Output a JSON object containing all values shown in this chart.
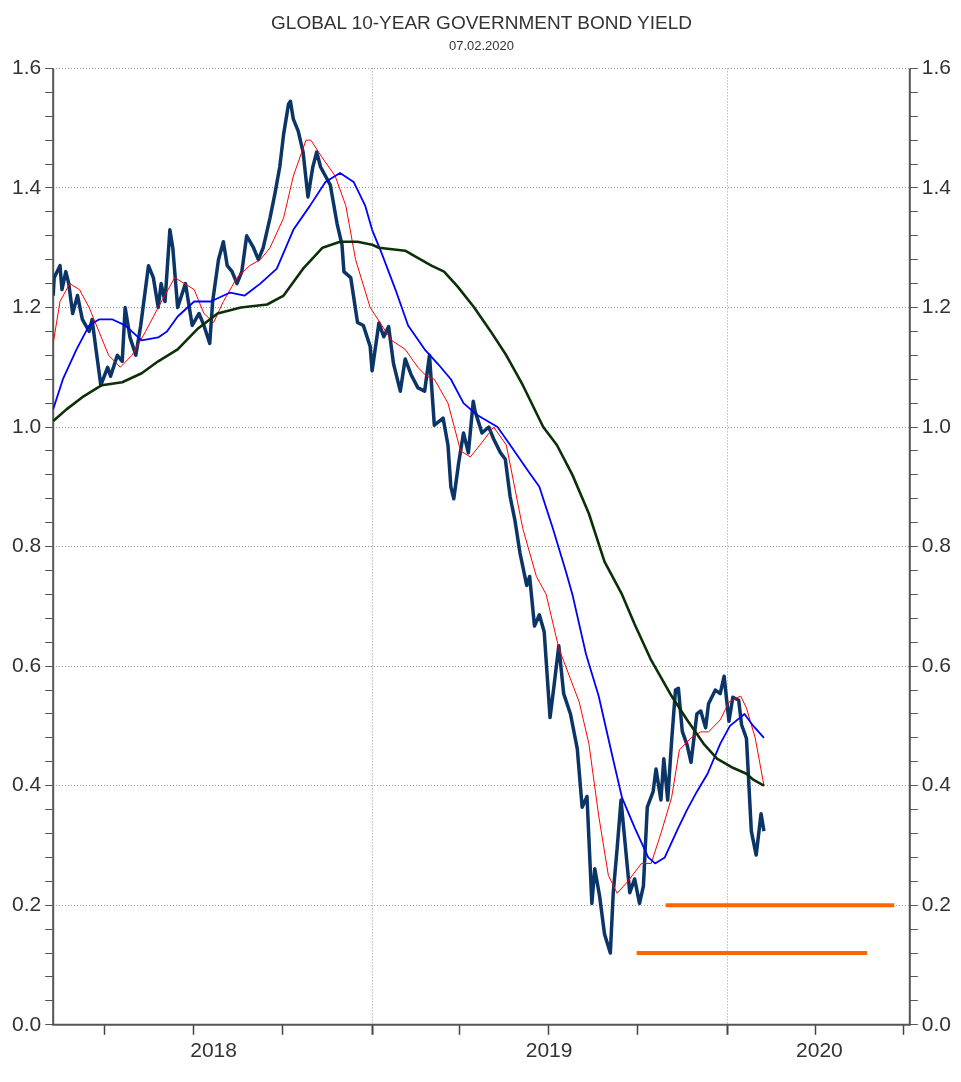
{
  "chart_data": {
    "type": "line",
    "title": "GLOBAL 10-YEAR GOVERNMENT BOND YIELD",
    "subtitle": "07.02.2020",
    "xlim": [
      "2018-02-07",
      "2020-07-07"
    ],
    "xticks": [
      {
        "value": "2018-04-01",
        "label": null
      },
      {
        "value": "2018-07-01",
        "label": null
      },
      {
        "value": "2018-07-22",
        "label": "2018"
      },
      {
        "value": "2018-10-01",
        "label": null
      },
      {
        "value": "2019-01-01",
        "label": null
      },
      {
        "value": "2019-04-01",
        "label": null
      },
      {
        "value": "2019-07-01",
        "label": null
      },
      {
        "value": "2019-07-02",
        "label": "2019"
      },
      {
        "value": "2019-10-01",
        "label": null
      },
      {
        "value": "2020-01-01",
        "label": null
      },
      {
        "value": "2020-04-01",
        "label": null
      },
      {
        "value": "2020-04-05",
        "label": "2020"
      },
      {
        "value": "2020-07-01",
        "label": null
      }
    ],
    "ylim": [
      0,
      1.6
    ],
    "yticks": [
      {
        "value": 0,
        "label": "0.0"
      },
      {
        "value": 0.04,
        "label": null
      },
      {
        "value": 0.08,
        "label": null
      },
      {
        "value": 0.12,
        "label": null
      },
      {
        "value": 0.16,
        "label": null
      },
      {
        "value": 0.2,
        "label": "0.2"
      },
      {
        "value": 0.24,
        "label": null
      },
      {
        "value": 0.28,
        "label": null
      },
      {
        "value": 0.32,
        "label": null
      },
      {
        "value": 0.36,
        "label": null
      },
      {
        "value": 0.4,
        "label": "0.4"
      },
      {
        "value": 0.44,
        "label": null
      },
      {
        "value": 0.48,
        "label": null
      },
      {
        "value": 0.52,
        "label": null
      },
      {
        "value": 0.56,
        "label": null
      },
      {
        "value": 0.6,
        "label": "0.6"
      },
      {
        "value": 0.64,
        "label": null
      },
      {
        "value": 0.68,
        "label": null
      },
      {
        "value": 0.72,
        "label": null
      },
      {
        "value": 0.76,
        "label": null
      },
      {
        "value": 0.8,
        "label": "0.8"
      },
      {
        "value": 0.84,
        "label": null
      },
      {
        "value": 0.88,
        "label": null
      },
      {
        "value": 0.92,
        "label": null
      },
      {
        "value": 0.96,
        "label": null
      },
      {
        "value": 1,
        "label": "1.0"
      },
      {
        "value": 1.04,
        "label": null
      },
      {
        "value": 1.08,
        "label": null
      },
      {
        "value": 1.12,
        "label": null
      },
      {
        "value": 1.16,
        "label": null
      },
      {
        "value": 1.2,
        "label": "1.2"
      },
      {
        "value": 1.24,
        "label": null
      },
      {
        "value": 1.28,
        "label": null
      },
      {
        "value": 1.32,
        "label": null
      },
      {
        "value": 1.36,
        "label": null
      },
      {
        "value": 1.4,
        "label": "1.4"
      },
      {
        "value": 1.44,
        "label": null
      },
      {
        "value": 1.48,
        "label": null
      },
      {
        "value": 1.52,
        "label": null
      },
      {
        "value": 1.56,
        "label": null
      },
      {
        "value": 1.6,
        "label": "1.6"
      }
    ],
    "y2lim": [
      0,
      1.6
    ],
    "y2ticks": [
      {
        "value": 0,
        "label": "0.0"
      },
      {
        "value": 0.04,
        "label": null
      },
      {
        "value": 0.08,
        "label": null
      },
      {
        "value": 0.12,
        "label": null
      },
      {
        "value": 0.16,
        "label": null
      },
      {
        "value": 0.2,
        "label": "0.2"
      },
      {
        "value": 0.24,
        "label": null
      },
      {
        "value": 0.28,
        "label": null
      },
      {
        "value": 0.32,
        "label": null
      },
      {
        "value": 0.36,
        "label": null
      },
      {
        "value": 0.4,
        "label": "0.4"
      },
      {
        "value": 0.44,
        "label": null
      },
      {
        "value": 0.48,
        "label": null
      },
      {
        "value": 0.52,
        "label": null
      },
      {
        "value": 0.56,
        "label": null
      },
      {
        "value": 0.6,
        "label": "0.6"
      },
      {
        "value": 0.64,
        "label": null
      },
      {
        "value": 0.68,
        "label": null
      },
      {
        "value": 0.72,
        "label": null
      },
      {
        "value": 0.76,
        "label": null
      },
      {
        "value": 0.8,
        "label": "0.8"
      },
      {
        "value": 0.84,
        "label": null
      },
      {
        "value": 0.88,
        "label": null
      },
      {
        "value": 0.92,
        "label": null
      },
      {
        "value": 0.96,
        "label": null
      },
      {
        "value": 1,
        "label": "1.0"
      },
      {
        "value": 1.04,
        "label": null
      },
      {
        "value": 1.08,
        "label": null
      },
      {
        "value": 1.12,
        "label": null
      },
      {
        "value": 1.16,
        "label": null
      },
      {
        "value": 1.2,
        "label": "1.2"
      },
      {
        "value": 1.24,
        "label": null
      },
      {
        "value": 1.28,
        "label": null
      },
      {
        "value": 1.32,
        "label": null
      },
      {
        "value": 1.36,
        "label": null
      },
      {
        "value": 1.4,
        "label": "1.4"
      },
      {
        "value": 1.44,
        "label": null
      },
      {
        "value": 1.48,
        "label": null
      },
      {
        "value": 1.52,
        "label": null
      },
      {
        "value": 1.56,
        "label": null
      },
      {
        "value": 1.6,
        "label": "1.6"
      }
    ],
    "grid": true,
    "legend": false,
    "marker": "none",
    "line_style": "solid",
    "series": [
      {
        "color": "#ff6600",
        "x": [
          "2019-10-30",
          "2020-06-21"
        ],
        "values": [
          0.2,
          0.2
        ]
      },
      {
        "color": "#ff6600",
        "x": [
          "2019-09-30",
          "2020-05-24"
        ],
        "values": [
          0.12,
          0.12
        ]
      },
      {
        "color": "#0b3008",
        "x": [
          "2018-02-07",
          "2018-02-21",
          "2018-03-09",
          "2018-03-29",
          "2018-04-19",
          "2018-05-09",
          "2018-05-26",
          "2018-06-15",
          "2018-07-06",
          "2018-07-26",
          "2018-08-19",
          "2018-09-15",
          "2018-10-02",
          "2018-10-22",
          "2018-11-11",
          "2018-11-29",
          "2018-12-17",
          "2019-01-01",
          "2019-01-08",
          "2019-02-04",
          "2019-03-03",
          "2019-03-16",
          "2019-03-30",
          "2019-04-16",
          "2019-05-03",
          "2019-05-19",
          "2019-06-05",
          "2019-06-26",
          "2019-07-10",
          "2019-07-26",
          "2019-08-12",
          "2019-08-28",
          "2019-09-15",
          "2019-09-28",
          "2019-10-15",
          "2019-11-05",
          "2019-11-21",
          "2019-12-08",
          "2019-12-22",
          "2020-01-07",
          "2020-01-21",
          "2020-01-28",
          "2020-02-08"
        ],
        "values": [
          1.01,
          1.03,
          1.05,
          1.07,
          1.075,
          1.09,
          1.11,
          1.13,
          1.165,
          1.19,
          1.2,
          1.205,
          1.22,
          1.265,
          1.3,
          1.31,
          1.31,
          1.305,
          1.3,
          1.295,
          1.27,
          1.26,
          1.235,
          1.2,
          1.16,
          1.12,
          1.07,
          1.0,
          0.97,
          0.92,
          0.855,
          0.775,
          0.72,
          0.67,
          0.61,
          0.55,
          0.51,
          0.47,
          0.445,
          0.43,
          0.42,
          0.41,
          0.4
        ]
      },
      {
        "color": "#0000ff",
        "x": [
          "2018-02-07",
          "2018-02-17",
          "2018-03-03",
          "2018-03-16",
          "2018-03-26",
          "2018-04-09",
          "2018-04-22",
          "2018-05-09",
          "2018-05-26",
          "2018-06-04",
          "2018-06-15",
          "2018-07-02",
          "2018-07-19",
          "2018-08-08",
          "2018-08-23",
          "2018-09-08",
          "2018-09-25",
          "2018-10-12",
          "2018-10-29",
          "2018-11-14",
          "2018-11-29",
          "2018-12-13",
          "2018-12-25",
          "2019-01-01",
          "2019-01-11",
          "2019-01-25",
          "2019-02-07",
          "2019-02-24",
          "2019-03-10",
          "2019-03-23",
          "2019-04-05",
          "2019-04-19",
          "2019-05-10",
          "2019-05-23",
          "2019-06-09",
          "2019-06-22",
          "2019-07-06",
          "2019-07-19",
          "2019-07-26",
          "2019-08-09",
          "2019-08-22",
          "2019-09-05",
          "2019-09-15",
          "2019-09-28",
          "2019-10-12",
          "2019-10-19",
          "2019-10-29",
          "2019-11-12",
          "2019-11-21",
          "2019-12-01",
          "2019-12-12",
          "2019-12-25",
          "2020-01-04",
          "2020-01-19",
          "2020-01-28",
          "2020-02-08"
        ],
        "values": [
          1.03,
          1.08,
          1.13,
          1.17,
          1.18,
          1.18,
          1.17,
          1.145,
          1.15,
          1.16,
          1.185,
          1.21,
          1.21,
          1.225,
          1.22,
          1.24,
          1.265,
          1.33,
          1.37,
          1.41,
          1.425,
          1.41,
          1.37,
          1.33,
          1.29,
          1.23,
          1.17,
          1.13,
          1.105,
          1.08,
          1.04,
          1.02,
          1.0,
          0.97,
          0.93,
          0.9,
          0.83,
          0.76,
          0.72,
          0.62,
          0.55,
          0.45,
          0.38,
          0.33,
          0.28,
          0.27,
          0.28,
          0.33,
          0.36,
          0.39,
          0.42,
          0.47,
          0.5,
          0.52,
          0.5,
          0.48
        ]
      },
      {
        "color": "#ff0000",
        "x": [
          "2018-02-07",
          "2018-02-14",
          "2018-02-24",
          "2018-03-06",
          "2018-03-16",
          "2018-03-26",
          "2018-04-05",
          "2018-04-17",
          "2018-04-29",
          "2018-05-13",
          "2018-05-26",
          "2018-06-12",
          "2018-06-22",
          "2018-07-02",
          "2018-07-12",
          "2018-07-22",
          "2018-08-01",
          "2018-08-15",
          "2018-08-28",
          "2018-09-08",
          "2018-09-18",
          "2018-10-02",
          "2018-10-12",
          "2018-10-25",
          "2018-10-30",
          "2018-11-11",
          "2018-11-24",
          "2018-12-05",
          "2018-12-15",
          "2018-12-30",
          "2019-01-21",
          "2019-02-04",
          "2019-02-17",
          "2019-02-26",
          "2019-03-06",
          "2019-03-20",
          "2019-04-02",
          "2019-04-12",
          "2019-04-22",
          "2019-05-06",
          "2019-05-19",
          "2019-06-05",
          "2019-06-19",
          "2019-06-29",
          "2019-07-12",
          "2019-08-02",
          "2019-08-12",
          "2019-08-22",
          "2019-09-01",
          "2019-09-10",
          "2019-09-21",
          "2019-10-05",
          "2019-10-15",
          "2019-10-25",
          "2019-11-05",
          "2019-11-13",
          "2019-11-25",
          "2019-12-05",
          "2019-12-13",
          "2019-12-25",
          "2020-01-03",
          "2020-01-15",
          "2020-01-21",
          "2020-01-30",
          "2020-02-08"
        ],
        "values": [
          1.14,
          1.21,
          1.24,
          1.23,
          1.2,
          1.16,
          1.12,
          1.1,
          1.12,
          1.16,
          1.2,
          1.25,
          1.24,
          1.23,
          1.19,
          1.175,
          1.21,
          1.25,
          1.27,
          1.28,
          1.3,
          1.35,
          1.42,
          1.48,
          1.48,
          1.45,
          1.42,
          1.37,
          1.28,
          1.2,
          1.145,
          1.13,
          1.1,
          1.085,
          1.08,
          1.04,
          0.96,
          0.95,
          0.97,
          1.0,
          0.97,
          0.83,
          0.75,
          0.72,
          0.63,
          0.54,
          0.47,
          0.35,
          0.25,
          0.22,
          0.24,
          0.27,
          0.27,
          0.32,
          0.38,
          0.46,
          0.48,
          0.49,
          0.49,
          0.51,
          0.54,
          0.55,
          0.53,
          0.48,
          0.4
        ]
      },
      {
        "color": "#0a3566",
        "x": [
          "2018-02-07",
          "2018-02-08",
          "2018-02-14",
          "2018-02-16",
          "2018-02-20",
          "2018-02-23",
          "2018-02-27",
          "2018-03-04",
          "2018-03-09",
          "2018-03-16",
          "2018-03-19",
          "2018-03-23",
          "2018-03-28",
          "2018-04-04",
          "2018-04-07",
          "2018-04-14",
          "2018-04-19",
          "2018-04-22",
          "2018-04-27",
          "2018-05-03",
          "2018-05-08",
          "2018-05-16",
          "2018-05-21",
          "2018-05-26",
          "2018-05-29",
          "2018-06-02",
          "2018-06-07",
          "2018-06-10",
          "2018-06-15",
          "2018-06-23",
          "2018-06-30",
          "2018-07-07",
          "2018-07-12",
          "2018-07-18",
          "2018-07-21",
          "2018-07-27",
          "2018-08-01",
          "2018-08-05",
          "2018-08-10",
          "2018-08-15",
          "2018-08-20",
          "2018-08-25",
          "2018-09-01",
          "2018-09-06",
          "2018-09-11",
          "2018-09-18",
          "2018-09-23",
          "2018-09-28",
          "2018-10-02",
          "2018-10-07",
          "2018-10-09",
          "2018-10-12",
          "2018-10-17",
          "2018-10-22",
          "2018-10-27",
          "2018-11-01",
          "2018-11-05",
          "2018-11-09",
          "2018-11-14",
          "2018-11-19",
          "2018-11-26",
          "2018-12-01",
          "2018-12-03",
          "2018-12-10",
          "2018-12-17",
          "2018-12-23",
          "2018-12-30",
          "2019-01-01",
          "2019-01-08",
          "2019-01-13",
          "2019-01-18",
          "2019-01-23",
          "2019-01-30",
          "2019-02-04",
          "2019-02-10",
          "2019-02-17",
          "2019-02-24",
          "2019-03-01",
          "2019-03-06",
          "2019-03-15",
          "2019-03-20",
          "2019-03-23",
          "2019-03-26",
          "2019-03-31",
          "2019-04-05",
          "2019-04-10",
          "2019-04-15",
          "2019-04-17",
          "2019-04-24",
          "2019-05-01",
          "2019-05-06",
          "2019-05-13",
          "2019-05-18",
          "2019-05-23",
          "2019-05-28",
          "2019-06-02",
          "2019-06-09",
          "2019-06-12",
          "2019-06-17",
          "2019-06-22",
          "2019-06-27",
          "2019-07-03",
          "2019-07-07",
          "2019-07-12",
          "2019-07-17",
          "2019-07-24",
          "2019-07-31",
          "2019-08-05",
          "2019-08-10",
          "2019-08-15",
          "2019-08-18",
          "2019-08-23",
          "2019-08-28",
          "2019-09-03",
          "2019-09-06",
          "2019-09-10",
          "2019-09-14",
          "2019-09-18",
          "2019-09-23",
          "2019-09-28",
          "2019-10-03",
          "2019-10-07",
          "2019-10-11",
          "2019-10-17",
          "2019-10-20",
          "2019-10-25",
          "2019-10-28",
          "2019-11-01",
          "2019-11-05",
          "2019-11-09",
          "2019-11-12",
          "2019-11-16",
          "2019-11-21",
          "2019-11-25",
          "2019-12-01",
          "2019-12-05",
          "2019-12-10",
          "2019-12-13",
          "2019-12-20",
          "2019-12-25",
          "2019-12-29",
          "2020-01-03",
          "2020-01-07",
          "2020-01-13",
          "2020-01-16",
          "2020-01-21",
          "2020-01-26",
          "2020-01-31",
          "2020-02-05",
          "2020-02-08"
        ],
        "values": [
          1.22,
          1.25,
          1.27,
          1.23,
          1.26,
          1.24,
          1.19,
          1.22,
          1.18,
          1.16,
          1.18,
          1.13,
          1.07,
          1.1,
          1.085,
          1.12,
          1.11,
          1.2,
          1.15,
          1.12,
          1.17,
          1.27,
          1.25,
          1.2,
          1.24,
          1.21,
          1.33,
          1.3,
          1.2,
          1.24,
          1.17,
          1.19,
          1.17,
          1.14,
          1.21,
          1.28,
          1.31,
          1.27,
          1.26,
          1.24,
          1.26,
          1.32,
          1.3,
          1.28,
          1.3,
          1.35,
          1.39,
          1.435,
          1.49,
          1.54,
          1.545,
          1.515,
          1.495,
          1.46,
          1.385,
          1.435,
          1.46,
          1.435,
          1.42,
          1.405,
          1.34,
          1.305,
          1.26,
          1.25,
          1.175,
          1.17,
          1.135,
          1.094,
          1.174,
          1.151,
          1.168,
          1.106,
          1.06,
          1.114,
          1.088,
          1.066,
          1.06,
          1.12,
          1.003,
          1.015,
          0.97,
          0.9,
          0.88,
          0.94,
          0.99,
          0.957,
          1.043,
          1.026,
          0.99,
          1.0,
          0.98,
          0.957,
          0.946,
          0.883,
          0.843,
          0.79,
          0.735,
          0.75,
          0.667,
          0.686,
          0.657,
          0.514,
          0.566,
          0.634,
          0.554,
          0.52,
          0.462,
          0.364,
          0.382,
          0.203,
          0.261,
          0.215,
          0.152,
          0.12,
          0.221,
          0.295,
          0.376,
          0.307,
          0.221,
          0.244,
          0.203,
          0.232,
          0.364,
          0.39,
          0.428,
          0.376,
          0.445,
          0.376,
          0.474,
          0.56,
          0.563,
          0.491,
          0.468,
          0.439,
          0.52,
          0.525,
          0.497,
          0.537,
          0.56,
          0.554,
          0.583,
          0.508,
          0.548,
          0.543,
          0.502,
          0.479,
          0.324,
          0.284,
          0.353,
          0.324
        ]
      }
    ]
  }
}
